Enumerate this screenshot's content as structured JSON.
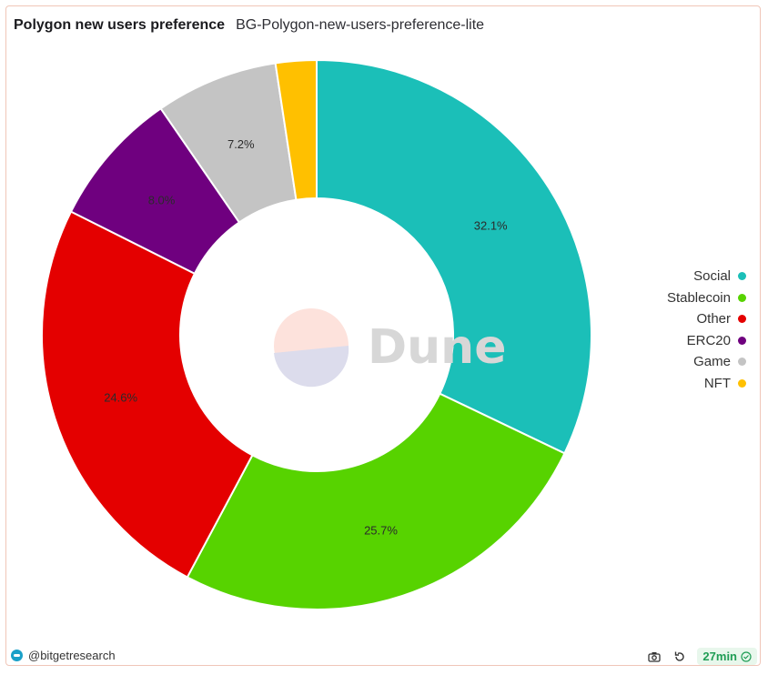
{
  "header": {
    "title": "Polygon new users preference",
    "subtitle": "BG-Polygon-new-users-preference-lite"
  },
  "chart_data": {
    "type": "pie",
    "donut": true,
    "slices": [
      {
        "name": "Social",
        "value": 32.1,
        "label": "32.1%",
        "color": "#1bbfb8"
      },
      {
        "name": "Stablecoin",
        "value": 25.7,
        "label": "25.7%",
        "color": "#57d300"
      },
      {
        "name": "Other",
        "value": 24.6,
        "label": "24.6%",
        "color": "#e40000"
      },
      {
        "name": "ERC20",
        "value": 8.0,
        "label": "8.0%",
        "color": "#6f007f"
      },
      {
        "name": "Game",
        "value": 7.2,
        "label": "7.2%",
        "color": "#c4c4c4"
      },
      {
        "name": "NFT",
        "value": 2.4,
        "label": "",
        "color": "#ffc000"
      }
    ],
    "legend_position": "right",
    "watermark": "Dune"
  },
  "footer": {
    "author": "@bitgetresearch",
    "refresh_age": "27min",
    "icons": [
      "camera-icon",
      "refresh-icon",
      "check-circle-icon"
    ]
  }
}
